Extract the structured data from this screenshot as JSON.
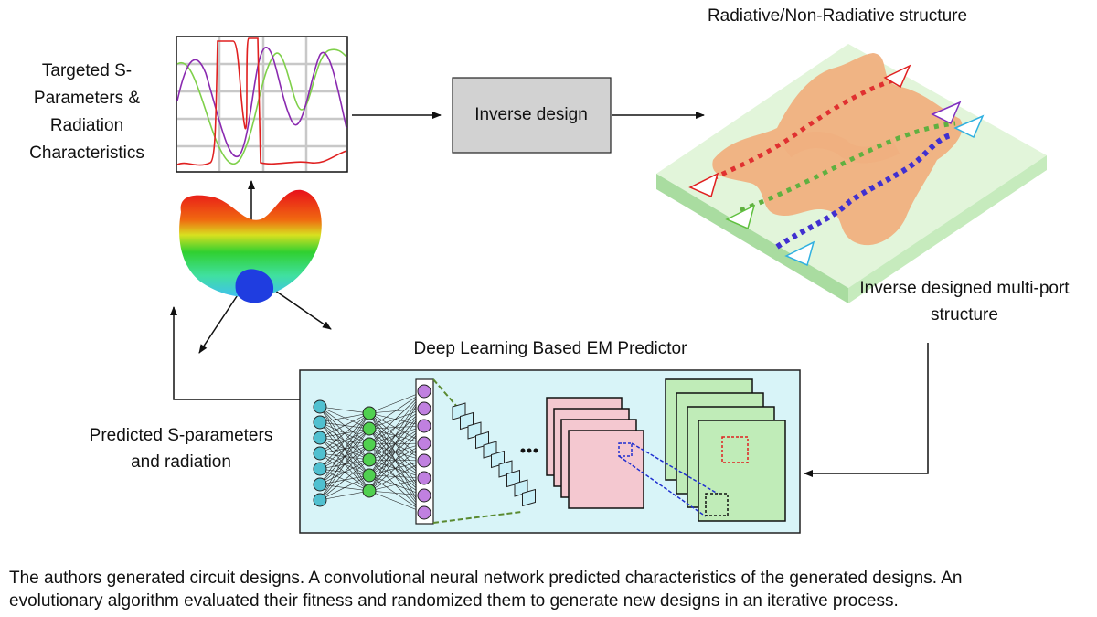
{
  "labels": {
    "targeted": [
      "Targeted S-",
      "Parameters &",
      "Radiation",
      "Characteristics"
    ],
    "inverse_design": "Inverse design",
    "structure_title": "Radiative/Non-Radiative structure",
    "multi_port": [
      "Inverse designed multi-port",
      "structure"
    ],
    "predictor_title": "Deep Learning Based EM Predictor",
    "predicted": [
      "Predicted S-parameters",
      "and radiation"
    ]
  },
  "caption": [
    "The authors generated circuit designs. A convolutional neural network predicted characteristics of the generated designs. An",
    "evolutionary algorithm evaluated their fitness and randomized them to generate new designs in an iterative process."
  ]
}
